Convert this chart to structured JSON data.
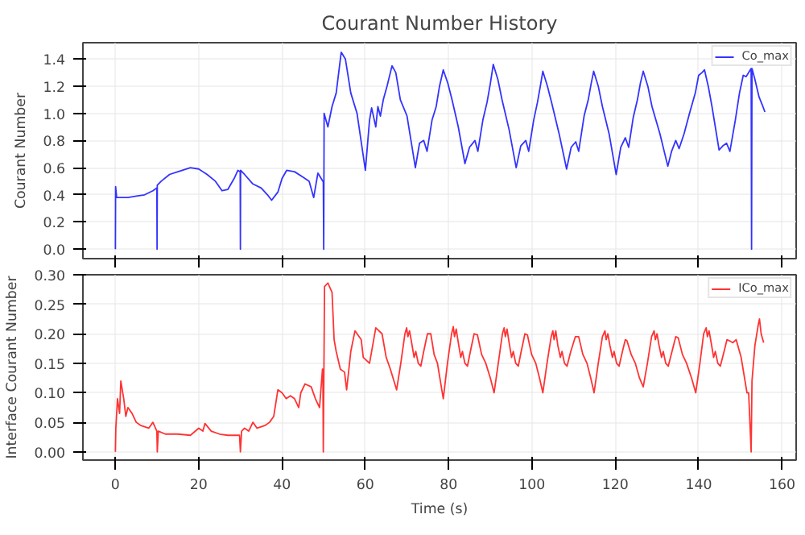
{
  "chart_data": [
    {
      "type": "line",
      "title": "Courant Number History",
      "ylabel": "Courant Number",
      "xlim": [
        -7.8,
        163.4
      ],
      "ylim": [
        -0.07,
        1.52
      ],
      "xticks": [
        0,
        20,
        40,
        60,
        80,
        100,
        120,
        140,
        160
      ],
      "yticks": [
        {
          "value": 0,
          "label": "0.0"
        },
        {
          "value": 0.2,
          "label": "0.2"
        },
        {
          "value": 0.4,
          "label": "0.4"
        },
        {
          "value": 0.6,
          "label": "0.6"
        },
        {
          "value": 0.8,
          "label": "0.8"
        },
        {
          "value": 1.0,
          "label": "1.0"
        },
        {
          "value": 1.2,
          "label": "1.2"
        },
        {
          "value": 1.4,
          "label": "1.4"
        }
      ],
      "grid": true,
      "legend": "top right",
      "tick_labels": "y",
      "series": [
        {
          "name": "Co_max",
          "color": "#0000ff",
          "x": [
            0,
            0.05,
            0.3,
            3,
            5,
            7,
            9,
            9.95,
            10,
            10.05,
            11,
            13,
            15,
            18,
            20,
            22,
            24,
            25.6,
            27,
            28.5,
            29.4,
            29.95,
            30,
            30.05,
            31,
            33,
            35,
            36.5,
            37.5,
            39,
            40,
            41.1,
            43,
            45,
            46.5,
            47.6,
            48.6,
            49.8,
            49.9,
            50.0,
            50.1,
            51,
            52,
            53,
            54.2,
            55.2,
            56.5,
            58,
            60.0,
            61.0,
            61.5,
            62.5,
            63.0,
            63.6,
            64.3,
            65.2,
            66.4,
            67.3,
            68.4,
            70.0,
            72.0,
            73.0,
            74.0,
            74.8,
            76.0,
            77.0,
            77.8,
            78.7,
            79.8,
            80.8,
            82.3,
            83.9,
            85.0,
            86.3,
            87.0,
            88.2,
            89.2,
            90.0,
            90.7,
            91.8,
            92.8,
            94.5,
            96.2,
            97.3,
            98.5,
            99.2,
            100.4,
            101.3,
            102.0,
            102.6,
            103.7,
            104.7,
            106.5,
            108.3,
            109.4,
            110.5,
            111.2,
            112.5,
            113.5,
            114.2,
            114.8,
            115.9,
            116.9,
            118.5,
            120.2,
            121.3,
            122.4,
            123.2,
            124.3,
            125.3,
            126.0,
            126.7,
            127.8,
            128.8,
            130.7,
            132.6,
            133.5,
            134.5,
            135.3,
            136.5,
            137.8,
            139.2,
            140.0,
            140.8,
            141.4,
            142.3,
            143.2,
            144.9,
            145.8,
            146.7,
            147.5,
            148.8,
            149.8,
            150.7,
            151.4,
            152.0,
            152.6,
            152.7,
            152.8,
            153.5,
            154.5,
            155.3,
            155.9
          ],
          "values": [
            0,
            0.46,
            0.38,
            0.38,
            0.39,
            0.4,
            0.43,
            0.45,
            0,
            0.47,
            0.5,
            0.55,
            0.57,
            0.6,
            0.59,
            0.55,
            0.5,
            0.43,
            0.44,
            0.52,
            0.58,
            0.57,
            0,
            0.58,
            0.55,
            0.48,
            0.45,
            0.4,
            0.36,
            0.42,
            0.52,
            0.58,
            0.57,
            0.53,
            0.5,
            0.38,
            0.56,
            0.5,
            0.5,
            0,
            1.0,
            0.9,
            1.05,
            1.15,
            1.45,
            1.4,
            1.15,
            1.0,
            0.58,
            0.95,
            1.04,
            0.9,
            1.05,
            0.98,
            1.1,
            1.2,
            1.35,
            1.3,
            1.1,
            0.98,
            0.6,
            0.78,
            0.8,
            0.72,
            0.95,
            1.05,
            1.2,
            1.32,
            1.22,
            1.1,
            0.9,
            0.63,
            0.75,
            0.8,
            0.72,
            0.95,
            1.08,
            1.22,
            1.36,
            1.25,
            1.1,
            0.88,
            0.6,
            0.76,
            0.8,
            0.72,
            0.95,
            1.08,
            1.2,
            1.31,
            1.2,
            1.08,
            0.85,
            0.59,
            0.75,
            0.79,
            0.72,
            0.98,
            1.1,
            1.22,
            1.31,
            1.2,
            1.05,
            0.85,
            0.55,
            0.75,
            0.82,
            0.75,
            0.97,
            1.1,
            1.22,
            1.31,
            1.2,
            1.05,
            0.85,
            0.61,
            0.72,
            0.8,
            0.74,
            0.85,
            1.0,
            1.15,
            1.28,
            1.3,
            1.32,
            1.2,
            1.05,
            0.73,
            0.76,
            0.78,
            0.72,
            0.95,
            1.15,
            1.28,
            1.27,
            1.3,
            1.33,
            0,
            1.33,
            1.25,
            1.12,
            1.06,
            1.01
          ]
        }
      ]
    },
    {
      "type": "line",
      "xlabel": "Time (s)",
      "ylabel": "Interface Courant Number",
      "xlim": [
        -7.8,
        163.4
      ],
      "ylim": [
        -0.014,
        0.3
      ],
      "xticks": [
        0,
        20,
        40,
        60,
        80,
        100,
        120,
        140,
        160
      ],
      "yticks": [
        {
          "value": 0,
          "label": "0.00"
        },
        {
          "value": 0.05,
          "label": "0.05"
        },
        {
          "value": 0.1,
          "label": "0.10"
        },
        {
          "value": 0.15,
          "label": "0.15"
        },
        {
          "value": 0.2,
          "label": "0.20"
        },
        {
          "value": 0.25,
          "label": "0.25"
        },
        {
          "value": 0.3,
          "label": "0.30"
        }
      ],
      "grid": true,
      "legend": "top right",
      "series": [
        {
          "name": "ICo_max",
          "color": "#ff0000",
          "x": [
            0,
            0.1,
            0.5,
            1,
            1.3,
            2,
            2.5,
            3,
            4,
            5,
            6,
            8,
            9,
            9.95,
            10.05,
            10.3,
            12,
            15,
            18,
            20,
            21,
            21.5,
            23,
            25,
            27,
            29.8,
            30,
            30.3,
            31,
            32,
            33,
            34,
            36,
            37,
            38,
            39,
            40,
            41,
            42,
            43,
            44,
            44.5,
            45.5,
            47,
            48,
            49,
            49.7,
            49.8,
            49.9,
            50.2,
            51,
            52,
            52.5,
            53,
            54,
            55,
            55.5,
            56.5,
            57.5,
            59,
            59.5,
            61,
            62.5,
            64,
            65,
            66.0,
            67.5,
            68.5,
            69.5,
            69.9,
            70.2,
            70.6,
            71.1,
            71.7,
            72.1,
            72.7,
            73.3,
            74.0,
            74.9,
            75.7,
            76.5,
            77.3,
            78.0,
            78.7,
            79.7,
            80.7,
            81.1,
            81.4,
            81.8,
            82.3,
            82.9,
            83.3,
            83.9,
            84.5,
            85.2,
            86.1,
            86.9,
            87.9,
            88.9,
            90.0,
            90.9,
            91.9,
            92.9,
            93.3,
            93.6,
            94.0,
            94.5,
            95.1,
            95.5,
            96.1,
            96.7,
            97.4,
            98.3,
            98.9,
            99.9,
            100.9,
            101.8,
            102.6,
            103.6,
            104.6,
            105.0,
            105.3,
            105.7,
            106.2,
            106.8,
            107.2,
            107.8,
            108.4,
            109.3,
            110.4,
            111.2,
            112.2,
            113.2,
            114.1,
            114.9,
            115.9,
            116.9,
            117.5,
            117.8,
            118.2,
            118.7,
            119.3,
            119.7,
            120.3,
            120.9,
            121.7,
            122.4,
            122.8,
            123.8,
            124.8,
            125.8,
            126.7,
            127.7,
            128.7,
            129.3,
            129.6,
            130.0,
            130.5,
            131.1,
            131.5,
            132.1,
            132.7,
            133.6,
            134.5,
            135.1,
            136.1,
            137.1,
            138.3,
            139.3,
            140.3,
            141.2,
            141.8,
            142.1,
            142.5,
            143.0,
            143.6,
            144.0,
            144.6,
            145.2,
            146.1,
            146.8,
            147.4,
            148.2,
            149.0,
            150.2,
            151.6,
            152.0,
            152.6,
            152.8,
            153.5,
            154.3,
            154.6,
            155.0,
            155.6
          ],
          "values": [
            0,
            0.04,
            0.09,
            0.065,
            0.12,
            0.09,
            0.06,
            0.075,
            0.065,
            0.05,
            0.045,
            0.04,
            0.05,
            0.035,
            0,
            0.035,
            0.03,
            0.03,
            0.028,
            0.04,
            0.035,
            0.048,
            0.035,
            0.03,
            0.028,
            0.028,
            0,
            0.035,
            0.04,
            0.035,
            0.05,
            0.04,
            0.045,
            0.05,
            0.06,
            0.105,
            0.1,
            0.09,
            0.095,
            0.09,
            0.075,
            0.1,
            0.115,
            0.11,
            0.09,
            0.075,
            0.14,
            0.14,
            0,
            0.28,
            0.286,
            0.27,
            0.19,
            0.17,
            0.14,
            0.135,
            0.105,
            0.17,
            0.205,
            0.19,
            0.16,
            0.15,
            0.21,
            0.2,
            0.16,
            0.14,
            0.105,
            0.15,
            0.2,
            0.21,
            0.195,
            0.205,
            0.185,
            0.16,
            0.17,
            0.15,
            0.145,
            0.17,
            0.2,
            0.2,
            0.165,
            0.15,
            0.12,
            0.09,
            0.15,
            0.2,
            0.212,
            0.195,
            0.208,
            0.185,
            0.16,
            0.17,
            0.15,
            0.145,
            0.17,
            0.2,
            0.198,
            0.165,
            0.15,
            0.125,
            0.1,
            0.15,
            0.2,
            0.21,
            0.195,
            0.208,
            0.185,
            0.16,
            0.17,
            0.15,
            0.145,
            0.17,
            0.2,
            0.198,
            0.165,
            0.15,
            0.125,
            0.1,
            0.15,
            0.195,
            0.205,
            0.19,
            0.205,
            0.18,
            0.16,
            0.17,
            0.15,
            0.145,
            0.17,
            0.195,
            0.195,
            0.165,
            0.15,
            0.125,
            0.1,
            0.15,
            0.195,
            0.205,
            0.19,
            0.2,
            0.18,
            0.16,
            0.17,
            0.15,
            0.145,
            0.17,
            0.19,
            0.188,
            0.165,
            0.15,
            0.125,
            0.11,
            0.15,
            0.195,
            0.205,
            0.19,
            0.2,
            0.18,
            0.16,
            0.17,
            0.15,
            0.145,
            0.17,
            0.195,
            0.193,
            0.165,
            0.15,
            0.125,
            0.1,
            0.15,
            0.2,
            0.21,
            0.195,
            0.205,
            0.185,
            0.16,
            0.17,
            0.15,
            0.145,
            0.17,
            0.19,
            0.188,
            0.185,
            0.19,
            0.16,
            0.1,
            0.1,
            0,
            0.12,
            0.18,
            0.215,
            0.225,
            0.2,
            0.185
          ]
        }
      ]
    }
  ]
}
